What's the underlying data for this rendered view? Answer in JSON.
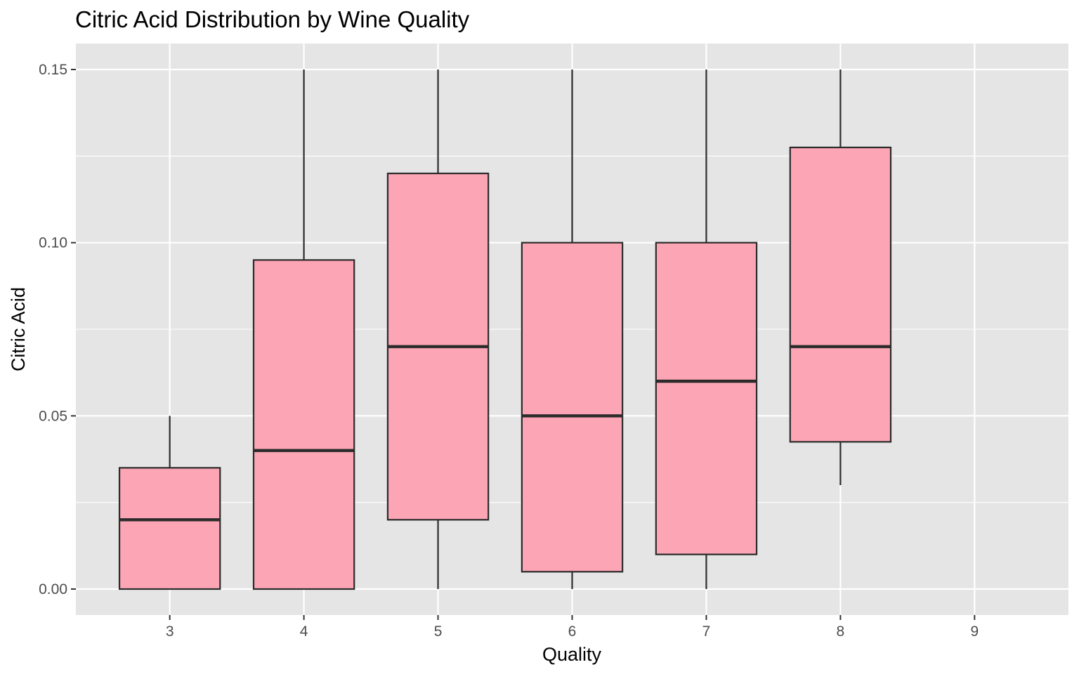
{
  "chart_data": {
    "type": "boxplot",
    "title": "Citric Acid Distribution by Wine Quality",
    "xlabel": "Quality",
    "ylabel": "Citric Acid",
    "categories": [
      "3",
      "4",
      "5",
      "6",
      "7",
      "8",
      "9"
    ],
    "y_ticks": [
      "0.00",
      "0.05",
      "0.10",
      "0.15"
    ],
    "y_tick_values": [
      0,
      0.05,
      0.1,
      0.15
    ],
    "ylim": [
      -0.0075,
      0.1575
    ],
    "grid": true,
    "boxes": [
      {
        "category": "3",
        "min": 0.0,
        "q1": 0.0,
        "median": 0.02,
        "q3": 0.035,
        "max": 0.05
      },
      {
        "category": "4",
        "min": 0.0,
        "q1": 0.0,
        "median": 0.04,
        "q3": 0.095,
        "max": 0.15
      },
      {
        "category": "5",
        "min": 0.0,
        "q1": 0.02,
        "median": 0.07,
        "q3": 0.12,
        "max": 0.15
      },
      {
        "category": "6",
        "min": 0.0,
        "q1": 0.005,
        "median": 0.05,
        "q3": 0.1,
        "max": 0.15
      },
      {
        "category": "7",
        "min": 0.0,
        "q1": 0.01,
        "median": 0.06,
        "q3": 0.1,
        "max": 0.15
      },
      {
        "category": "8",
        "min": 0.03,
        "q1": 0.0425,
        "median": 0.07,
        "q3": 0.1275,
        "max": 0.15
      }
    ],
    "colors": {
      "panel": "#e5e5e5",
      "grid": "#ffffff",
      "box_fill": "#fca6b5",
      "box_stroke": "#2b2b2b"
    }
  }
}
